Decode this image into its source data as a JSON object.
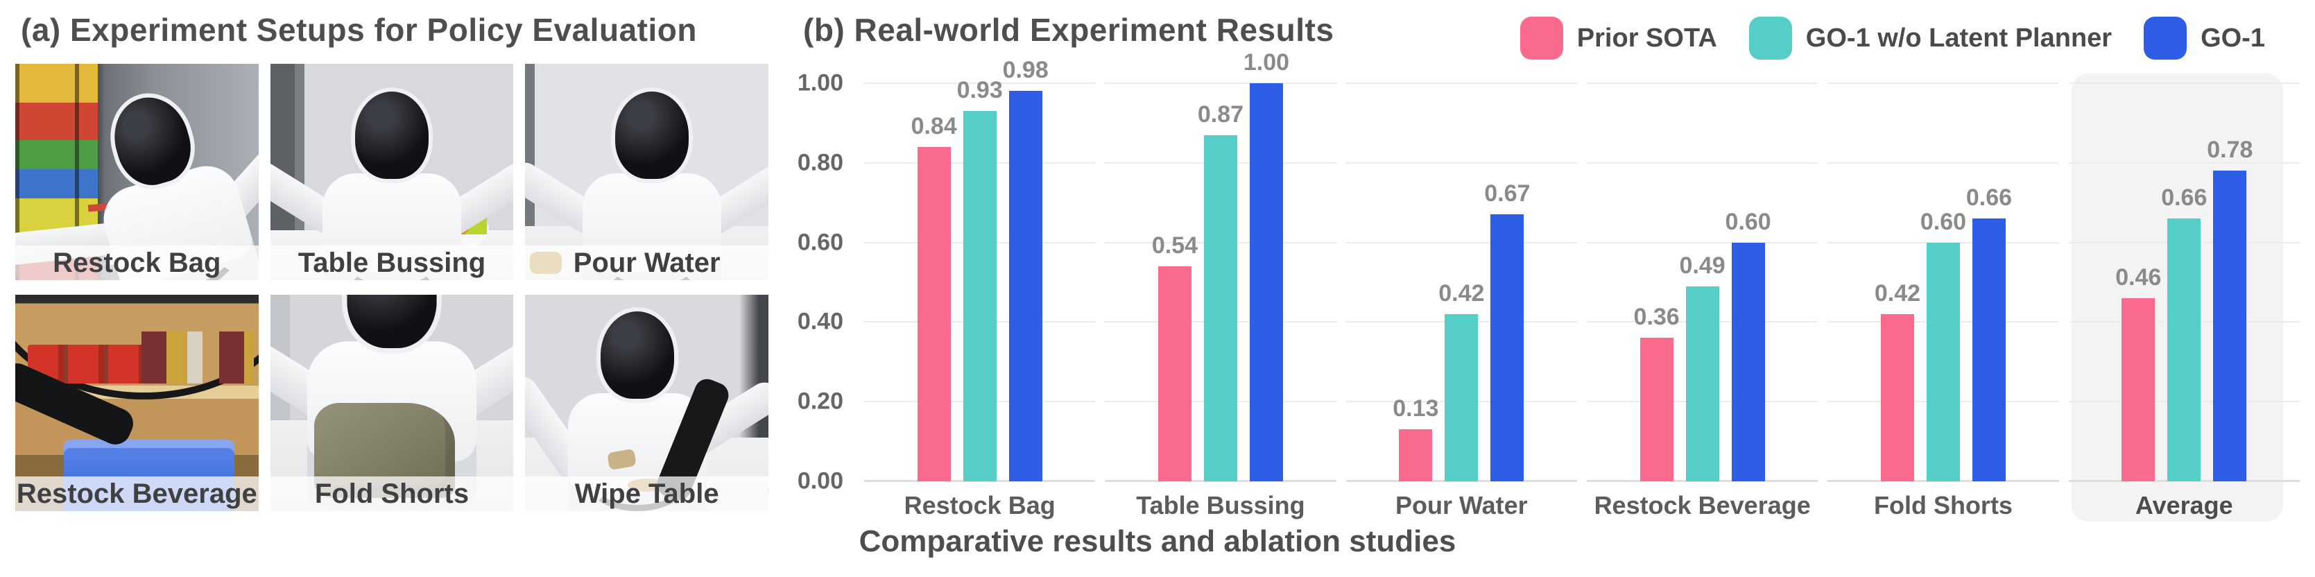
{
  "panel_a": {
    "title": "(a) Experiment Setups for Policy Evaluation",
    "photos": [
      {
        "id": "restock-bag",
        "label": "Restock Bag"
      },
      {
        "id": "table-bussing",
        "label": "Table Bussing"
      },
      {
        "id": "pour-water",
        "label": "Pour Water"
      },
      {
        "id": "restock-beverage",
        "label": "Restock Beverage"
      },
      {
        "id": "fold-shorts",
        "label": "Fold Shorts"
      },
      {
        "id": "wipe-table",
        "label": "Wipe Table"
      }
    ]
  },
  "panel_b": {
    "title": "(b) Real-world Experiment Results",
    "caption": "Comparative results and ablation studies"
  },
  "chart_data": {
    "type": "bar",
    "title": "(b) Real-world Experiment Results",
    "categories": [
      "Restock Bag",
      "Table Bussing",
      "Pour Water",
      "Restock Beverage",
      "Fold Shorts",
      "Average"
    ],
    "series": [
      {
        "name": "Prior SOTA",
        "color": "#FA6A8D",
        "values": [
          0.84,
          0.54,
          0.13,
          0.36,
          0.42,
          0.46
        ]
      },
      {
        "name": "GO-1 w/o Latent Planner",
        "color": "#54CEC6",
        "values": [
          0.93,
          0.87,
          0.42,
          0.49,
          0.6,
          0.66
        ]
      },
      {
        "name": "GO-1",
        "color": "#2F5EE6",
        "values": [
          0.98,
          1.0,
          0.67,
          0.6,
          0.66,
          0.78
        ]
      }
    ],
    "ylim": [
      0,
      1
    ],
    "yticks": [
      0,
      0.2,
      0.4,
      0.6,
      0.8,
      1.0
    ],
    "ytick_labels": [
      "0.00",
      "0.20",
      "0.40",
      "0.60",
      "0.80",
      "1.00"
    ],
    "grid": true,
    "legend_position": "top-right",
    "highlight_category": "Average",
    "highlight_bg": "#F3F3F4",
    "value_label_color": "#8A8A8A"
  }
}
